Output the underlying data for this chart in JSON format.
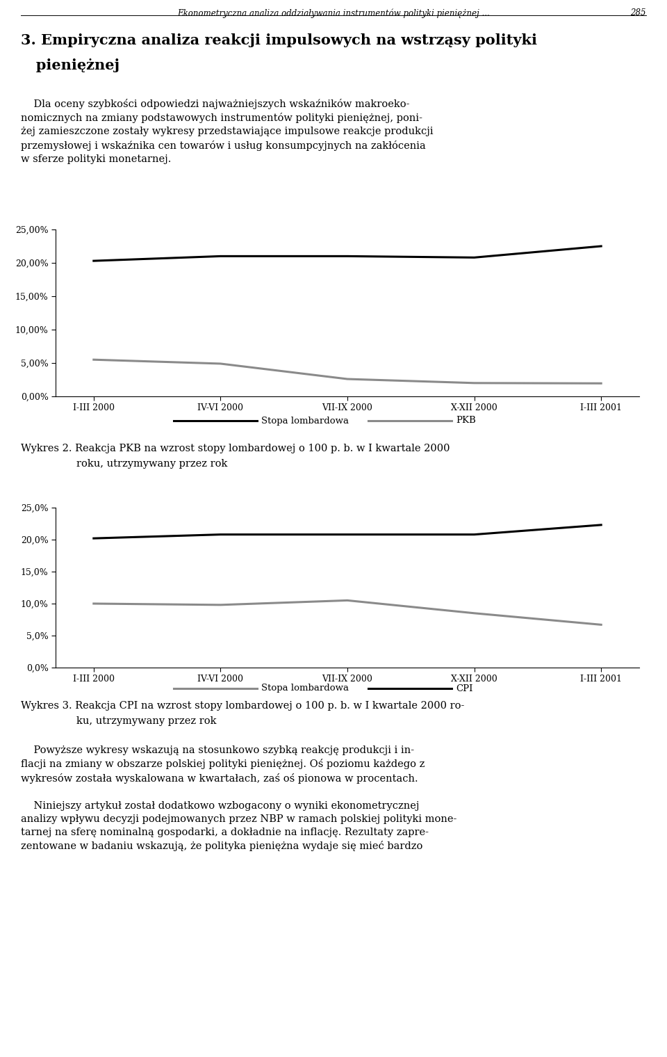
{
  "header_italic": "Ekonometryczna analiza oddziaływania instrumentów polityki pieniężnej ...",
  "header_page": "285",
  "section_title_line1": "3. Empiryczna analiza reakcji impulsowych na wstrząsy polityki",
  "section_title_line2": "   pieniężnej",
  "x_labels": [
    "I-III 2000",
    "IV-VI 2000",
    "VII-IX 2000",
    "X-XII 2000",
    "I-III 2001"
  ],
  "chart1": {
    "stopa_lombardowa": [
      20.3,
      21.0,
      21.0,
      20.8,
      22.5
    ],
    "pkb": [
      5.5,
      4.9,
      2.6,
      2.0,
      1.95
    ],
    "ylim": [
      0,
      25
    ],
    "yticks": [
      0.0,
      5.0,
      10.0,
      15.0,
      20.0,
      25.0
    ],
    "ytick_labels": [
      "0,00%",
      "5,00%",
      "10,00%",
      "15,00%",
      "20,00%",
      "25,00%"
    ],
    "legend1_label": "Stopa lombardowa",
    "legend2_label": "PKB",
    "caption_line1": "Wykres 2. Reakcja PKB na wzrost stopy lombardowej o 100 p. b. w I kwartale 2000",
    "caption_line2": "roku, utrzymywany przez rok"
  },
  "chart2": {
    "stopa_lombardowa": [
      10.0,
      9.8,
      10.5,
      8.5,
      6.7
    ],
    "cpi": [
      20.2,
      20.8,
      20.8,
      20.8,
      22.3
    ],
    "ylim": [
      0,
      25
    ],
    "yticks": [
      0.0,
      5.0,
      10.0,
      15.0,
      20.0,
      25.0
    ],
    "ytick_labels": [
      "0,0%",
      "5,0%",
      "10,0%",
      "15,0%",
      "20,0%",
      "25,0%"
    ],
    "legend1_label": "Stopa lombardowa",
    "legend2_label": "CPI",
    "caption_line1": "Wykres 3. Reakcja CPI na wzrost stopy lombardowej o 100 p. b. w I kwartale 2000 ro-",
    "caption_line2": "ku, utrzymywany przez rok"
  },
  "para1": "    Dla oceny szybkości odpowiedzi najważniejszych wskaźników makroeko-\nnomicznych na zmiany podstawowych instrumentów polityki pieniężnej, poni-\nżej zamieszczone zostały wykresy przedstawiające impulsowe reakcje produkcji\nprzemysłowej i wskaźnika cen towarów i usług konsumpcyjnych na zakłócenia\nw sferze polityki monetarnej.",
  "para2": "    Powyższe wykresy wskazują na stosunkowo szybką reakcję produkcji i in-\nflacji na zmiany w obszarze polskiej polityki pieniężnej. Oś poziomu każdego z\nwykresów została wyskalowana w kwartałach, zaś oś pionowa w procentach.",
  "para3": "    Niniejszy artykuł został dodatkowo wzbogacony o wyniki ekonometrycznej\nanalizy wpływu decyzji podejmowanych przez NBP w ramach polskiej polityki mone-\ntarnej na sferę nominalną gospodarki, a dokładnie na inflację. Rezultaty zapre-\nzentowane w badaniu wskazują, że polityka pieniężna wydaje się mieć bardzo",
  "black": "#000000",
  "gray": "#8a8a8a",
  "bg": "#ffffff"
}
